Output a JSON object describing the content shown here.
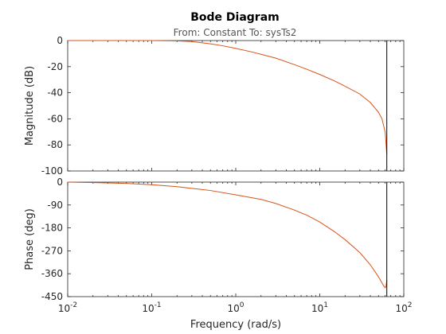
{
  "chart_data": {
    "type": "line",
    "title": "Bode Diagram",
    "subtitle": "From: Constant  To: sysTs2",
    "xlabel": "Frequency  (rad/s)",
    "x_scale": "log",
    "xlim": [
      0.01,
      100
    ],
    "x_ticks": [
      {
        "value": 0.01,
        "base": "10",
        "exp": "-2"
      },
      {
        "value": 0.1,
        "base": "10",
        "exp": "-1"
      },
      {
        "value": 1,
        "base": "10",
        "exp": "0"
      },
      {
        "value": 10,
        "base": "10",
        "exp": "1"
      },
      {
        "value": 100,
        "base": "10",
        "exp": "2"
      }
    ],
    "grid": false,
    "line_color": "#d95319",
    "vline_color": "#000000",
    "vline_x": 62.8,
    "magnitude": {
      "ylabel": "Magnitude (dB)",
      "ylim": [
        -100,
        0
      ],
      "yticks": [
        0,
        -20,
        -40,
        -60,
        -80,
        -100
      ],
      "ytick_labels": [
        "0",
        "-20",
        "-40",
        "-60",
        "-80",
        "-100"
      ],
      "x": [
        0.01,
        0.05,
        0.1,
        0.2,
        0.3,
        0.5,
        0.7,
        1,
        1.5,
        2,
        3,
        5,
        7,
        10,
        15,
        20,
        30,
        40,
        50,
        55,
        60,
        62.8
      ],
      "y": [
        0,
        0,
        0,
        -0.2,
        -0.8,
        -2.5,
        -4,
        -6,
        -8.5,
        -10.5,
        -13.5,
        -18.5,
        -22,
        -26,
        -31,
        -35,
        -41,
        -47.5,
        -55,
        -60,
        -70,
        -87
      ]
    },
    "phase": {
      "ylabel": "Phase (deg)",
      "ylim": [
        -450,
        0
      ],
      "yticks": [
        0,
        -90,
        -180,
        -270,
        -360,
        -450
      ],
      "ytick_labels": [
        "0",
        "-90",
        "-180",
        "-270",
        "-360",
        "-450"
      ],
      "x": [
        0.01,
        0.02,
        0.05,
        0.1,
        0.2,
        0.5,
        1,
        2,
        3,
        5,
        7,
        10,
        15,
        20,
        30,
        40,
        50,
        57,
        60,
        61.5,
        62.8
      ],
      "y": [
        0,
        -2,
        -5,
        -10,
        -18,
        -33,
        -50,
        -68,
        -84,
        -110,
        -130,
        -157,
        -195,
        -226,
        -277,
        -325,
        -372,
        -405,
        -415,
        -410,
        -385
      ]
    }
  }
}
